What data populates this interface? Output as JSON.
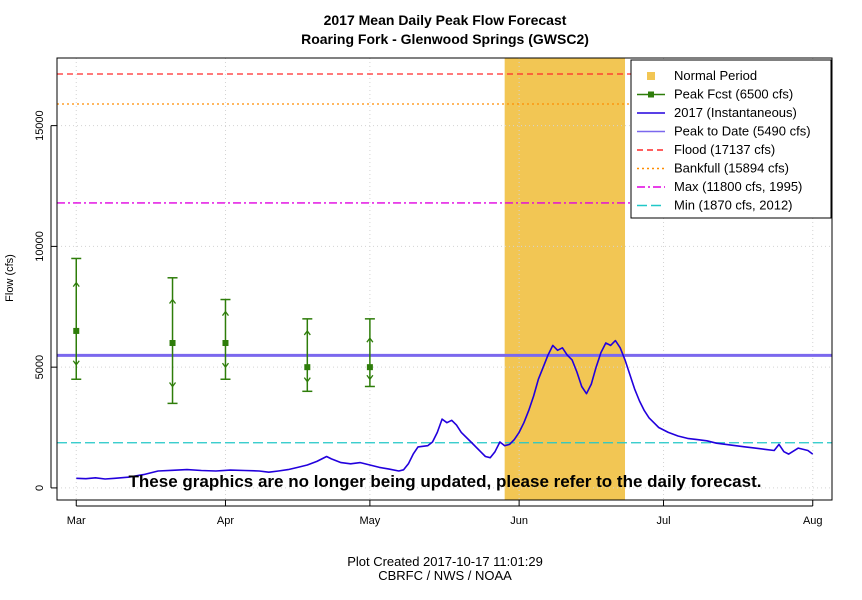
{
  "chart_data": {
    "type": "line",
    "title": "2017 Mean Daily Peak Flow Forecast",
    "subtitle": "Roaring Fork - Glenwood Springs (GWSC2)",
    "ylabel": "Flow (cfs)",
    "xlabel": "",
    "xlim": [
      "2017-02-25",
      "2017-08-05"
    ],
    "ylim": [
      -500,
      17800
    ],
    "grid": true,
    "legend_position": "top-right",
    "x_ticks": [
      {
        "date": "2017-03-01",
        "label": "Mar"
      },
      {
        "date": "2017-04-01",
        "label": "Apr"
      },
      {
        "date": "2017-05-01",
        "label": "May"
      },
      {
        "date": "2017-06-01",
        "label": "Jun"
      },
      {
        "date": "2017-07-01",
        "label": "Jul"
      },
      {
        "date": "2017-08-01",
        "label": "Aug"
      }
    ],
    "y_ticks": [
      {
        "value": 0,
        "label": "0"
      },
      {
        "value": 5000,
        "label": "5000"
      },
      {
        "value": 10000,
        "label": "10000"
      },
      {
        "value": 15000,
        "label": "15000"
      }
    ],
    "normal_period": {
      "start": "2017-05-29",
      "end": "2017-06-23",
      "color": "#f2c654"
    },
    "reference_lines": [
      {
        "name": "flood",
        "value": 17137,
        "color": "#ff2a2a",
        "style": "dashed"
      },
      {
        "name": "bankfull",
        "value": 15894,
        "color": "#ff8c00",
        "style": "dotted"
      },
      {
        "name": "max",
        "value": 11800,
        "color": "#e000e0",
        "style": "dashdot"
      },
      {
        "name": "peak_to_date",
        "value": 5490,
        "color": "#7b68ee",
        "style": "solid"
      },
      {
        "name": "min",
        "value": 1870,
        "color": "#20c8c8",
        "style": "longdash"
      }
    ],
    "peak_forecasts": [
      {
        "date": "2017-03-01",
        "value": 6500,
        "low": 4500,
        "high": 9500,
        "inner_low": 5100,
        "inner_high": 8500
      },
      {
        "date": "2017-03-21",
        "value": 6000,
        "low": 3500,
        "high": 8700,
        "inner_low": 4200,
        "inner_high": 7800
      },
      {
        "date": "2017-04-01",
        "value": 6000,
        "low": 4500,
        "high": 7800,
        "inner_low": 5000,
        "inner_high": 7300
      },
      {
        "date": "2017-04-18",
        "value": 5000,
        "low": 4000,
        "high": 7000,
        "inner_low": 4400,
        "inner_high": 6500
      },
      {
        "date": "2017-05-01",
        "value": 5000,
        "low": 4200,
        "high": 7000,
        "inner_low": 4500,
        "inner_high": 6200
      }
    ],
    "forecast_color": "#2e7d0a",
    "series": [
      {
        "name": "2017 (Instantaneous)",
        "color": "#2200dd",
        "points": [
          [
            "2017-03-01",
            400
          ],
          [
            "2017-03-03",
            380
          ],
          [
            "2017-03-05",
            420
          ],
          [
            "2017-03-07",
            370
          ],
          [
            "2017-03-09",
            400
          ],
          [
            "2017-03-12",
            450
          ],
          [
            "2017-03-15",
            550
          ],
          [
            "2017-03-18",
            700
          ],
          [
            "2017-03-21",
            730
          ],
          [
            "2017-03-24",
            760
          ],
          [
            "2017-03-27",
            720
          ],
          [
            "2017-03-30",
            700
          ],
          [
            "2017-04-02",
            740
          ],
          [
            "2017-04-05",
            720
          ],
          [
            "2017-04-08",
            700
          ],
          [
            "2017-04-10",
            650
          ],
          [
            "2017-04-12",
            700
          ],
          [
            "2017-04-14",
            760
          ],
          [
            "2017-04-16",
            850
          ],
          [
            "2017-04-18",
            950
          ],
          [
            "2017-04-20",
            1100
          ],
          [
            "2017-04-22",
            1300
          ],
          [
            "2017-04-23",
            1200
          ],
          [
            "2017-04-25",
            1050
          ],
          [
            "2017-04-27",
            1000
          ],
          [
            "2017-04-29",
            1050
          ],
          [
            "2017-05-01",
            950
          ],
          [
            "2017-05-03",
            850
          ],
          [
            "2017-05-05",
            780
          ],
          [
            "2017-05-07",
            700
          ],
          [
            "2017-05-08",
            750
          ],
          [
            "2017-05-09",
            1000
          ],
          [
            "2017-05-10",
            1400
          ],
          [
            "2017-05-11",
            1700
          ],
          [
            "2017-05-13",
            1750
          ],
          [
            "2017-05-14",
            1900
          ],
          [
            "2017-05-15",
            2300
          ],
          [
            "2017-05-16",
            2850
          ],
          [
            "2017-05-17",
            2700
          ],
          [
            "2017-05-18",
            2800
          ],
          [
            "2017-05-19",
            2600
          ],
          [
            "2017-05-20",
            2300
          ],
          [
            "2017-05-22",
            1900
          ],
          [
            "2017-05-24",
            1500
          ],
          [
            "2017-05-25",
            1300
          ],
          [
            "2017-05-26",
            1250
          ],
          [
            "2017-05-27",
            1500
          ],
          [
            "2017-05-28",
            1900
          ],
          [
            "2017-05-29",
            1750
          ],
          [
            "2017-05-30",
            1800
          ],
          [
            "2017-05-31",
            2000
          ],
          [
            "2017-06-01",
            2300
          ],
          [
            "2017-06-02",
            2700
          ],
          [
            "2017-06-03",
            3200
          ],
          [
            "2017-06-04",
            3800
          ],
          [
            "2017-06-05",
            4500
          ],
          [
            "2017-06-06",
            5000
          ],
          [
            "2017-06-07",
            5500
          ],
          [
            "2017-06-08",
            5900
          ],
          [
            "2017-06-09",
            5700
          ],
          [
            "2017-06-10",
            5800
          ],
          [
            "2017-06-11",
            5500
          ],
          [
            "2017-06-12",
            5300
          ],
          [
            "2017-06-13",
            4800
          ],
          [
            "2017-06-14",
            4200
          ],
          [
            "2017-06-15",
            3900
          ],
          [
            "2017-06-16",
            4300
          ],
          [
            "2017-06-17",
            5000
          ],
          [
            "2017-06-18",
            5600
          ],
          [
            "2017-06-19",
            6000
          ],
          [
            "2017-06-20",
            5900
          ],
          [
            "2017-06-21",
            6100
          ],
          [
            "2017-06-22",
            5800
          ],
          [
            "2017-06-23",
            5300
          ],
          [
            "2017-06-24",
            4700
          ],
          [
            "2017-06-25",
            4100
          ],
          [
            "2017-06-26",
            3600
          ],
          [
            "2017-06-27",
            3200
          ],
          [
            "2017-06-28",
            2900
          ],
          [
            "2017-06-29",
            2700
          ],
          [
            "2017-06-30",
            2500
          ],
          [
            "2017-07-02",
            2300
          ],
          [
            "2017-07-04",
            2150
          ],
          [
            "2017-07-06",
            2050
          ],
          [
            "2017-07-08",
            2000
          ],
          [
            "2017-07-10",
            1950
          ],
          [
            "2017-07-12",
            1850
          ],
          [
            "2017-07-14",
            1800
          ],
          [
            "2017-07-16",
            1750
          ],
          [
            "2017-07-18",
            1700
          ],
          [
            "2017-07-20",
            1650
          ],
          [
            "2017-07-22",
            1600
          ],
          [
            "2017-07-24",
            1550
          ],
          [
            "2017-07-25",
            1800
          ],
          [
            "2017-07-26",
            1500
          ],
          [
            "2017-07-27",
            1400
          ],
          [
            "2017-07-29",
            1650
          ],
          [
            "2017-07-31",
            1550
          ],
          [
            "2017-08-01",
            1400
          ]
        ]
      }
    ],
    "legend": [
      {
        "label": "Normal Period",
        "kind": "square",
        "color": "#f2c654"
      },
      {
        "label": "Peak Fcst (6500 cfs)",
        "kind": "line-square",
        "color": "#2e7d0a",
        "dash": ""
      },
      {
        "label": "2017  (Instantaneous)",
        "kind": "line",
        "color": "#2200dd",
        "dash": ""
      },
      {
        "label": "Peak to Date (5490 cfs)",
        "kind": "line",
        "color": "#7b68ee",
        "dash": ""
      },
      {
        "label": "Flood (17137 cfs)",
        "kind": "line",
        "color": "#ff2a2a",
        "dash": "6,4"
      },
      {
        "label": "Bankfull (15894 cfs)",
        "kind": "line",
        "color": "#ff8c00",
        "dash": "2,3"
      },
      {
        "label": "Max (11800 cfs, 1995)",
        "kind": "line",
        "color": "#e000e0",
        "dash": "8,3,2,3"
      },
      {
        "label": "Min (1870 cfs, 2012)",
        "kind": "line",
        "color": "#20c8c8",
        "dash": "10,4"
      }
    ],
    "annotation": "These graphics are no longer being updated, please refer to the daily forecast."
  },
  "footer": {
    "created": "Plot Created 2017-10-17 11:01:29",
    "credit": "CBRFC / NWS / NOAA"
  }
}
